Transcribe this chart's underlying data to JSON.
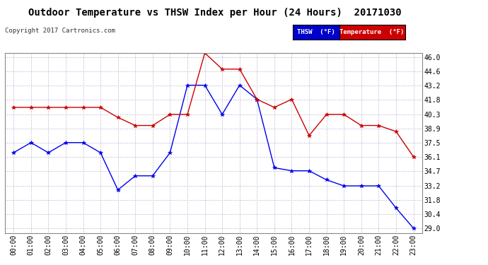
{
  "title": "Outdoor Temperature vs THSW Index per Hour (24 Hours)  20171030",
  "copyright": "Copyright 2017 Cartronics.com",
  "x_labels": [
    "00:00",
    "01:00",
    "02:00",
    "03:00",
    "04:00",
    "05:00",
    "06:00",
    "07:00",
    "08:00",
    "09:00",
    "10:00",
    "11:00",
    "12:00",
    "13:00",
    "14:00",
    "15:00",
    "16:00",
    "17:00",
    "18:00",
    "19:00",
    "20:00",
    "21:00",
    "22:00",
    "23:00"
  ],
  "thsw_data": [
    36.5,
    37.5,
    36.5,
    37.5,
    37.5,
    36.5,
    32.8,
    34.2,
    34.2,
    36.5,
    43.2,
    43.2,
    40.3,
    43.2,
    41.8,
    35.0,
    34.7,
    34.7,
    33.8,
    33.2,
    33.2,
    33.2,
    31.0,
    29.0
  ],
  "temp_data": [
    41.0,
    41.0,
    41.0,
    41.0,
    41.0,
    41.0,
    40.0,
    39.2,
    39.2,
    40.3,
    40.3,
    46.4,
    44.8,
    44.8,
    41.8,
    41.0,
    41.8,
    38.2,
    40.3,
    40.3,
    39.2,
    39.2,
    38.6,
    36.1
  ],
  "thsw_color": "#0000ee",
  "temp_color": "#cc0000",
  "bg_color": "#ffffff",
  "grid_color": "#aaaacc",
  "ylim_min": 28.5,
  "ylim_max": 46.4,
  "yticks": [
    29.0,
    30.4,
    31.8,
    33.2,
    34.7,
    36.1,
    37.5,
    38.9,
    40.3,
    41.8,
    43.2,
    44.6,
    46.0
  ],
  "legend_thsw_label": "THSW  (°F)",
  "legend_temp_label": "Temperature  (°F)",
  "legend_thsw_bg": "#0000cc",
  "legend_temp_bg": "#cc0000",
  "title_fontsize": 10,
  "tick_fontsize": 7,
  "copyright_fontsize": 6.5
}
